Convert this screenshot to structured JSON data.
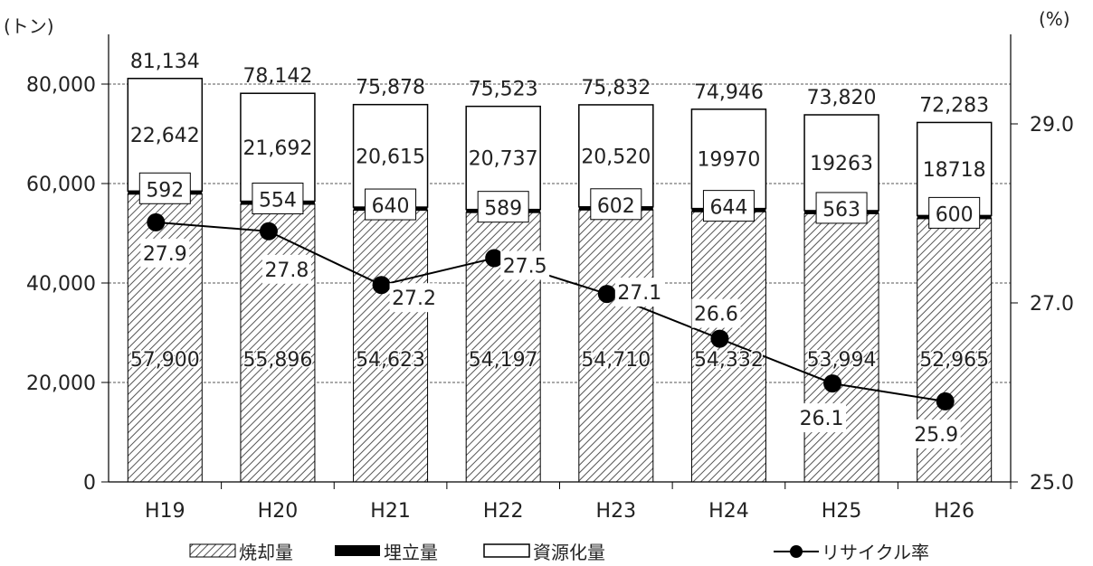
{
  "chart_data": {
    "type": "bar",
    "stacked": true,
    "categories": [
      "H19",
      "H20",
      "H21",
      "H22",
      "H23",
      "H24",
      "H25",
      "H26"
    ],
    "series": [
      {
        "name": "焼却量",
        "axis": "left",
        "pattern": "hatch",
        "values": [
          57900,
          55896,
          54623,
          54197,
          54710,
          54332,
          53994,
          52965
        ]
      },
      {
        "name": "埋立量",
        "axis": "left",
        "color": "#000000",
        "values": [
          592,
          554,
          640,
          589,
          602,
          644,
          563,
          600
        ]
      },
      {
        "name": "資源化量",
        "axis": "left",
        "color": "#ffffff",
        "values": [
          22642,
          21692,
          20615,
          20737,
          20520,
          19970,
          19263,
          18718
        ]
      },
      {
        "name": "リサイクル率",
        "type": "line",
        "axis": "right",
        "color": "#000000",
        "values": [
          27.9,
          27.8,
          27.2,
          27.5,
          27.1,
          26.6,
          26.1,
          25.9
        ]
      }
    ],
    "labels": {
      "incineration": [
        "57,900",
        "55,896",
        "54,623",
        "54,197",
        "54,710",
        "54,332",
        "53,994",
        "52,965"
      ],
      "landfill": [
        "592",
        "554",
        "640",
        "589",
        "602",
        "644",
        "563",
        "600"
      ],
      "recycled": [
        "22,642",
        "21,692",
        "20,615",
        "20,737",
        "20,520",
        "19970",
        "19263",
        "18718"
      ],
      "totals": [
        "81,134",
        "78,142",
        "75,878",
        "75,523",
        "75,832",
        "74,946",
        "73,820",
        "72,283"
      ],
      "rate": [
        "27.9",
        "27.8",
        "27.2",
        "27.5",
        "27.1",
        "26.6",
        "26.1",
        "25.9"
      ]
    },
    "left_axis": {
      "unit": "(トン)",
      "min": 0,
      "max": 80000,
      "ticks": [
        0,
        20000,
        40000,
        60000,
        80000
      ],
      "tick_labels": [
        "0",
        "20,000",
        "40,000",
        "60,000",
        "80,000"
      ]
    },
    "right_axis": {
      "unit": "(%)",
      "min": 25.0,
      "max": 29.0,
      "ticks": [
        25.0,
        27.0,
        29.0
      ],
      "tick_labels": [
        "25.0",
        "27.0",
        "29.0"
      ]
    },
    "grid": "horizontal-dashed",
    "legend": {
      "position": "bottom",
      "entries": [
        "焼却量",
        "埋立量",
        "資源化量",
        "リサイクル率"
      ]
    }
  }
}
